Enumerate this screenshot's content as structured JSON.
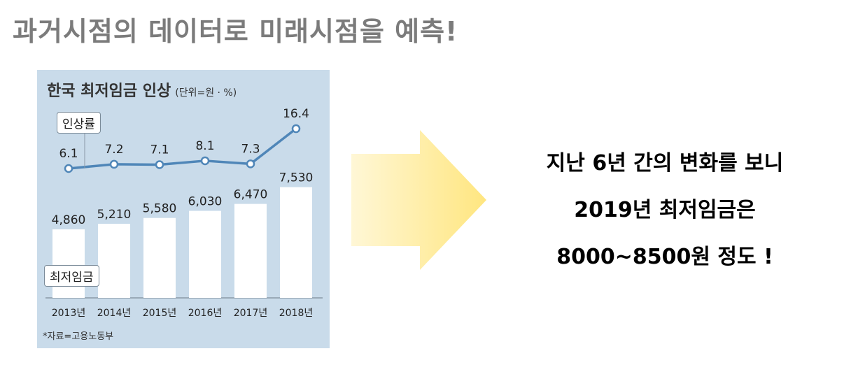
{
  "headline": "과거시점의 데이터로 미래시점을 예측!",
  "conclusion": {
    "line1": "지난 6년 간의 변화를 보니",
    "line2": "2019년 최저임금은",
    "line3": "8000~8500원 정도 !"
  },
  "colors": {
    "chart_background": "#c9dbea",
    "line": "#4f86b8",
    "bars": "#ffffff",
    "headline": "#7b7b7b",
    "arrow_start": "#fff7d6",
    "arrow_end": "#ffe680"
  },
  "chart_data": {
    "type": "bar",
    "title": "한국 최저임금 인상",
    "unit_note": "(단위=원 · %)",
    "categories": [
      "2013년",
      "2014년",
      "2015년",
      "2016년",
      "2017년",
      "2018년"
    ],
    "series": [
      {
        "name": "최저임금",
        "type": "bar",
        "values": [
          4860,
          5210,
          5580,
          6030,
          6470,
          7530
        ],
        "labels": [
          "4,860",
          "5,210",
          "5,580",
          "6,030",
          "6,470",
          "7,530"
        ]
      },
      {
        "name": "인상률",
        "type": "line",
        "values": [
          6.1,
          7.2,
          7.1,
          8.1,
          7.3,
          16.4
        ],
        "labels": [
          "6.1",
          "7.2",
          "7.1",
          "8.1",
          "7.3",
          "16.4"
        ]
      }
    ],
    "source": "*자료=고용노동부",
    "grid": false
  }
}
